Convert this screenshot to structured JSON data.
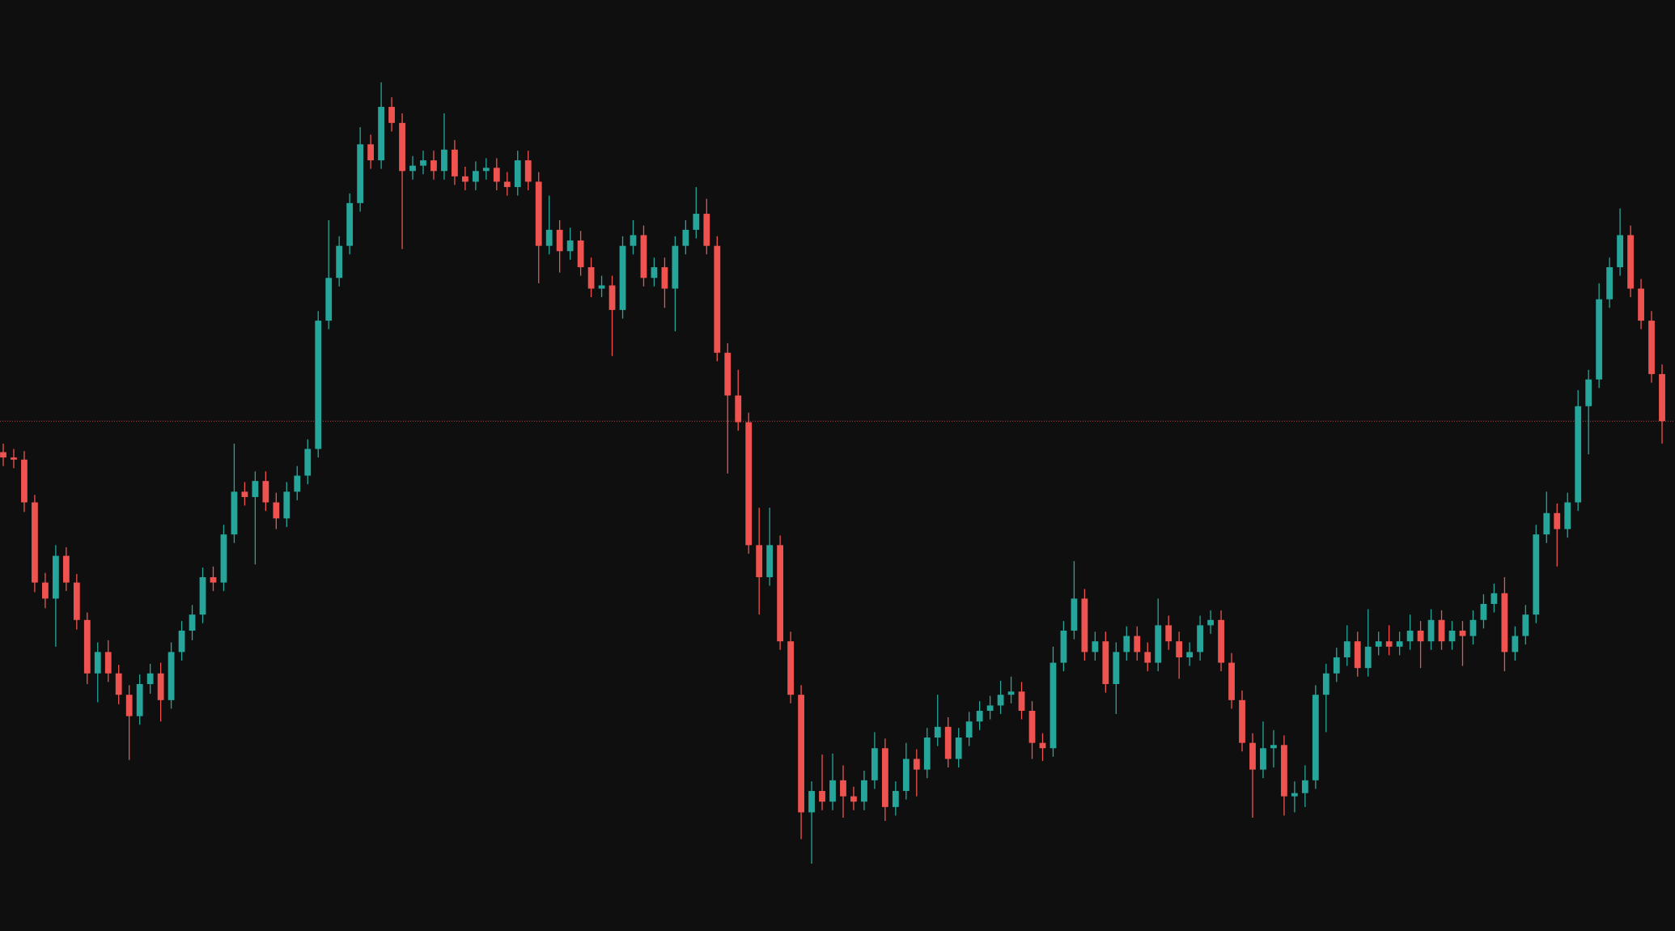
{
  "chart_data": {
    "type": "candlestick",
    "background": "#0f0f0f",
    "up_color": "#26a69a",
    "down_color": "#ef5350",
    "price_line": 47.7,
    "price_line_color": "#ef5350",
    "ylim": [
      0,
      87.1
    ],
    "ohlc": [
      [
        44.8,
        45.6,
        43.5,
        44.3
      ],
      [
        44.3,
        45.1,
        43.3,
        44.1
      ],
      [
        44.1,
        44.9,
        39.2,
        40.1
      ],
      [
        40.1,
        40.8,
        31.7,
        32.6
      ],
      [
        32.6,
        33.5,
        30.2,
        31.1
      ],
      [
        31.1,
        36.1,
        26.6,
        35.1
      ],
      [
        35.1,
        35.9,
        31.8,
        32.6
      ],
      [
        32.6,
        33.4,
        28.2,
        29.1
      ],
      [
        29.1,
        29.8,
        23.1,
        24.1
      ],
      [
        24.1,
        27.0,
        21.4,
        26.1
      ],
      [
        26.1,
        27.2,
        23.3,
        24.1
      ],
      [
        24.1,
        24.9,
        21.2,
        22.1
      ],
      [
        22.1,
        23.0,
        16.0,
        20.1
      ],
      [
        20.1,
        24.0,
        19.3,
        23.1
      ],
      [
        23.1,
        25.0,
        22.2,
        24.1
      ],
      [
        24.1,
        25.1,
        19.6,
        21.6
      ],
      [
        21.6,
        27.0,
        20.8,
        26.1
      ],
      [
        26.1,
        29.0,
        25.3,
        28.1
      ],
      [
        28.1,
        30.5,
        27.2,
        29.6
      ],
      [
        29.6,
        34.0,
        28.8,
        33.1
      ],
      [
        33.1,
        34.1,
        31.8,
        32.6
      ],
      [
        32.6,
        38.0,
        31.8,
        37.1
      ],
      [
        37.1,
        45.6,
        36.3,
        41.1
      ],
      [
        41.1,
        42.0,
        39.8,
        40.6
      ],
      [
        40.6,
        43.0,
        34.3,
        42.1
      ],
      [
        42.1,
        43.0,
        39.3,
        40.1
      ],
      [
        40.1,
        41.0,
        37.6,
        38.6
      ],
      [
        38.6,
        42.0,
        37.8,
        41.1
      ],
      [
        41.1,
        43.5,
        40.3,
        42.6
      ],
      [
        42.6,
        46.0,
        41.8,
        45.1
      ],
      [
        45.1,
        58.0,
        44.3,
        57.1
      ],
      [
        57.1,
        66.5,
        56.3,
        61.1
      ],
      [
        61.1,
        65.0,
        60.3,
        64.1
      ],
      [
        64.1,
        69.0,
        63.3,
        68.1
      ],
      [
        68.1,
        75.2,
        67.3,
        73.6
      ],
      [
        73.6,
        74.5,
        71.3,
        72.1
      ],
      [
        72.1,
        79.4,
        71.3,
        77.1
      ],
      [
        77.1,
        78.0,
        74.8,
        75.6
      ],
      [
        75.6,
        76.5,
        63.8,
        71.1
      ],
      [
        71.1,
        72.5,
        70.3,
        71.6
      ],
      [
        71.6,
        73.0,
        70.8,
        72.1
      ],
      [
        72.1,
        73.0,
        70.3,
        71.1
      ],
      [
        71.1,
        76.5,
        70.3,
        73.1
      ],
      [
        73.1,
        74.0,
        69.8,
        70.6
      ],
      [
        70.6,
        71.5,
        69.3,
        70.1
      ],
      [
        70.1,
        72.0,
        69.3,
        71.1
      ],
      [
        71.1,
        72.3,
        70.3,
        71.4
      ],
      [
        71.4,
        72.3,
        69.3,
        70.1
      ],
      [
        70.1,
        71.0,
        68.8,
        69.6
      ],
      [
        69.6,
        73.0,
        68.8,
        72.1
      ],
      [
        72.1,
        73.0,
        69.3,
        70.1
      ],
      [
        70.1,
        71.0,
        60.6,
        64.1
      ],
      [
        64.1,
        68.8,
        63.3,
        65.6
      ],
      [
        65.6,
        66.5,
        61.6,
        63.6
      ],
      [
        63.6,
        65.8,
        62.8,
        64.6
      ],
      [
        64.6,
        65.5,
        61.3,
        62.1
      ],
      [
        62.1,
        63.0,
        59.3,
        60.1
      ],
      [
        60.1,
        61.3,
        59.3,
        60.4
      ],
      [
        60.4,
        61.3,
        53.8,
        58.1
      ],
      [
        58.1,
        65.0,
        57.3,
        64.1
      ],
      [
        64.1,
        66.5,
        63.3,
        65.1
      ],
      [
        65.1,
        66.0,
        60.3,
        61.1
      ],
      [
        61.1,
        63.0,
        60.3,
        62.1
      ],
      [
        62.1,
        63.0,
        58.3,
        60.1
      ],
      [
        60.1,
        65.0,
        56.1,
        64.1
      ],
      [
        64.1,
        66.5,
        63.3,
        65.6
      ],
      [
        65.6,
        69.6,
        64.8,
        67.1
      ],
      [
        67.1,
        68.5,
        63.3,
        64.1
      ],
      [
        64.1,
        65.0,
        53.3,
        54.1
      ],
      [
        54.1,
        55.0,
        42.8,
        50.1
      ],
      [
        50.1,
        52.5,
        46.8,
        47.6
      ],
      [
        47.6,
        48.5,
        35.3,
        36.1
      ],
      [
        36.1,
        39.6,
        29.6,
        33.1
      ],
      [
        33.1,
        39.6,
        32.3,
        36.1
      ],
      [
        36.1,
        37.0,
        26.3,
        27.1
      ],
      [
        27.1,
        28.0,
        21.3,
        22.1
      ],
      [
        22.1,
        23.0,
        8.6,
        11.1
      ],
      [
        11.1,
        14.0,
        6.3,
        13.1
      ],
      [
        13.1,
        16.5,
        11.3,
        12.1
      ],
      [
        12.1,
        16.6,
        11.3,
        14.1
      ],
      [
        14.1,
        15.5,
        10.6,
        12.6
      ],
      [
        12.6,
        13.5,
        11.3,
        12.1
      ],
      [
        12.1,
        15.0,
        11.3,
        14.1
      ],
      [
        14.1,
        18.6,
        13.3,
        17.1
      ],
      [
        17.1,
        18.0,
        10.3,
        11.6
      ],
      [
        11.6,
        14.0,
        10.8,
        13.1
      ],
      [
        13.1,
        17.6,
        12.3,
        16.1
      ],
      [
        16.1,
        17.0,
        12.6,
        15.1
      ],
      [
        15.1,
        19.0,
        14.3,
        18.1
      ],
      [
        18.1,
        22.1,
        17.3,
        19.1
      ],
      [
        19.1,
        20.0,
        15.3,
        16.1
      ],
      [
        16.1,
        19.0,
        15.3,
        18.1
      ],
      [
        18.1,
        20.5,
        17.3,
        19.6
      ],
      [
        19.6,
        21.5,
        18.8,
        20.6
      ],
      [
        20.6,
        22.0,
        19.8,
        21.1
      ],
      [
        21.1,
        23.4,
        20.3,
        22.1
      ],
      [
        22.1,
        23.8,
        21.3,
        22.4
      ],
      [
        22.4,
        23.3,
        19.8,
        20.6
      ],
      [
        20.6,
        21.5,
        16.1,
        17.6
      ],
      [
        17.6,
        18.5,
        15.9,
        17.1
      ],
      [
        17.1,
        26.6,
        16.3,
        25.1
      ],
      [
        25.1,
        29.0,
        24.3,
        28.1
      ],
      [
        28.1,
        34.6,
        27.3,
        31.1
      ],
      [
        31.1,
        32.0,
        25.3,
        26.1
      ],
      [
        26.1,
        28.0,
        25.3,
        27.1
      ],
      [
        27.1,
        28.0,
        22.3,
        23.1
      ],
      [
        23.1,
        27.0,
        20.3,
        26.1
      ],
      [
        26.1,
        28.5,
        25.3,
        27.6
      ],
      [
        27.6,
        28.5,
        25.3,
        26.1
      ],
      [
        26.1,
        27.0,
        24.3,
        25.1
      ],
      [
        25.1,
        31.1,
        24.3,
        28.6
      ],
      [
        28.6,
        29.5,
        26.3,
        27.1
      ],
      [
        27.1,
        28.0,
        23.6,
        25.6
      ],
      [
        25.6,
        27.0,
        24.8,
        26.1
      ],
      [
        26.1,
        29.5,
        25.3,
        28.6
      ],
      [
        28.6,
        30.0,
        27.8,
        29.1
      ],
      [
        29.1,
        30.0,
        24.3,
        25.1
      ],
      [
        25.1,
        26.0,
        20.8,
        21.6
      ],
      [
        21.6,
        22.5,
        16.8,
        17.6
      ],
      [
        17.6,
        18.5,
        10.6,
        15.1
      ],
      [
        15.1,
        19.6,
        14.3,
        17.1
      ],
      [
        17.1,
        18.8,
        15.3,
        17.4
      ],
      [
        17.4,
        18.3,
        10.8,
        12.6
      ],
      [
        12.6,
        14.0,
        11.1,
        12.9
      ],
      [
        12.9,
        15.5,
        11.6,
        14.1
      ],
      [
        14.1,
        23.0,
        13.3,
        22.1
      ],
      [
        22.1,
        25.0,
        18.6,
        24.1
      ],
      [
        24.1,
        26.5,
        23.3,
        25.6
      ],
      [
        25.6,
        28.6,
        24.8,
        27.1
      ],
      [
        27.1,
        28.0,
        23.8,
        24.6
      ],
      [
        24.6,
        30.1,
        23.8,
        26.6
      ],
      [
        26.6,
        28.0,
        25.8,
        27.1
      ],
      [
        27.1,
        28.6,
        25.8,
        26.6
      ],
      [
        26.6,
        28.0,
        25.8,
        27.1
      ],
      [
        27.1,
        29.6,
        26.3,
        28.1
      ],
      [
        28.1,
        29.0,
        24.6,
        27.1
      ],
      [
        27.1,
        30.1,
        26.3,
        29.1
      ],
      [
        29.1,
        30.0,
        26.3,
        27.1
      ],
      [
        27.1,
        29.0,
        26.3,
        28.1
      ],
      [
        28.1,
        29.0,
        24.8,
        27.6
      ],
      [
        27.6,
        30.0,
        26.8,
        29.1
      ],
      [
        29.1,
        31.5,
        28.3,
        30.6
      ],
      [
        30.6,
        32.5,
        29.8,
        31.6
      ],
      [
        31.6,
        33.1,
        24.3,
        26.1
      ],
      [
        26.1,
        28.5,
        25.3,
        27.6
      ],
      [
        27.6,
        30.5,
        26.8,
        29.6
      ],
      [
        29.6,
        38.0,
        28.8,
        37.1
      ],
      [
        37.1,
        41.1,
        36.3,
        39.1
      ],
      [
        39.1,
        40.0,
        34.1,
        37.6
      ],
      [
        37.6,
        41.0,
        36.8,
        40.1
      ],
      [
        40.1,
        50.6,
        39.3,
        49.1
      ],
      [
        49.1,
        52.5,
        44.6,
        51.6
      ],
      [
        51.6,
        60.6,
        50.8,
        59.1
      ],
      [
        59.1,
        63.0,
        58.3,
        62.1
      ],
      [
        62.1,
        67.6,
        61.3,
        65.1
      ],
      [
        65.1,
        66.0,
        59.3,
        60.1
      ],
      [
        60.1,
        61.0,
        56.3,
        57.1
      ],
      [
        57.1,
        58.0,
        51.3,
        52.1
      ],
      [
        52.1,
        53.0,
        45.6,
        47.7
      ]
    ]
  }
}
